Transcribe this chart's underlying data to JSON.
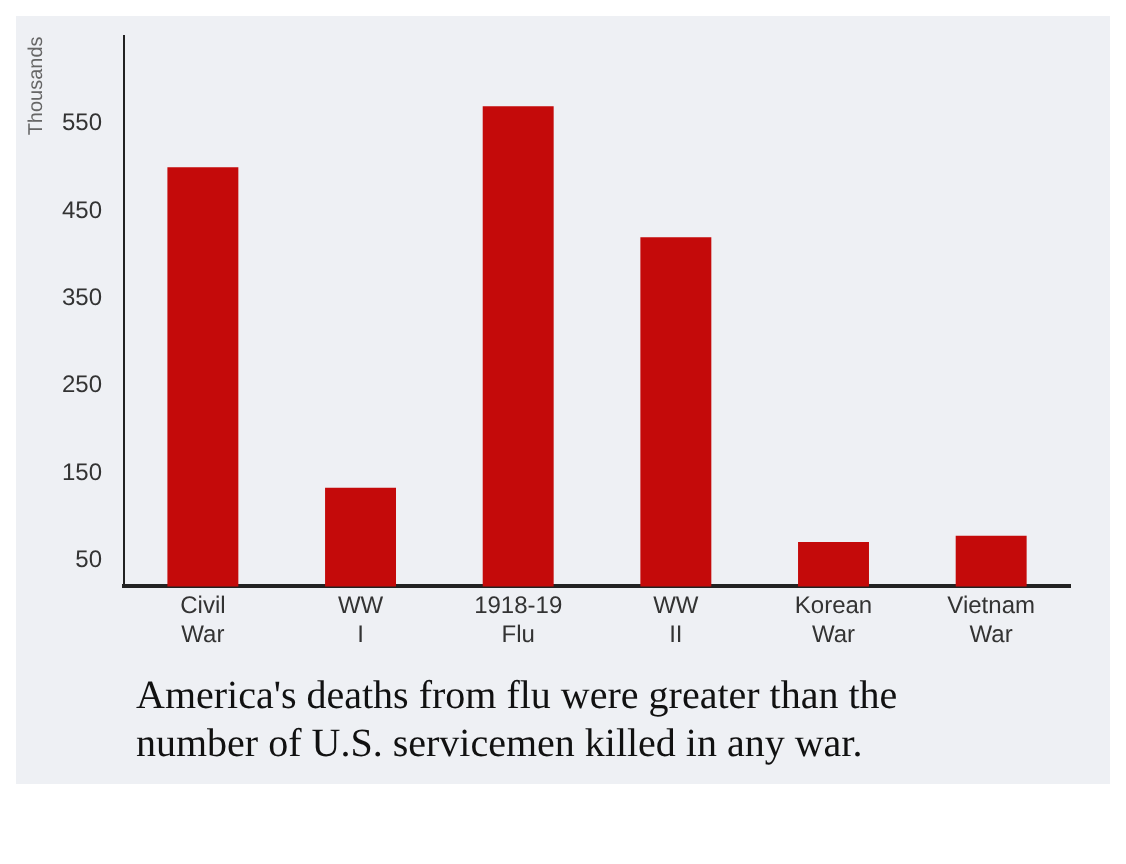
{
  "chart_data": {
    "type": "bar",
    "ylabel": "Thousands",
    "categories": [
      "Civil War",
      "WW I",
      "1918-19 Flu",
      "WW II",
      "Korean War",
      "Vietnam War"
    ],
    "values": [
      500,
      133,
      570,
      420,
      71,
      78
    ],
    "color": "#c40a0a",
    "ylim": [
      20,
      650
    ],
    "yticks": [
      50,
      150,
      250,
      350,
      450,
      550
    ],
    "grid": false,
    "legend": false,
    "annotations": [
      "America's deaths from flu were greater than the number of U.S. servicemen killed in any war."
    ]
  }
}
